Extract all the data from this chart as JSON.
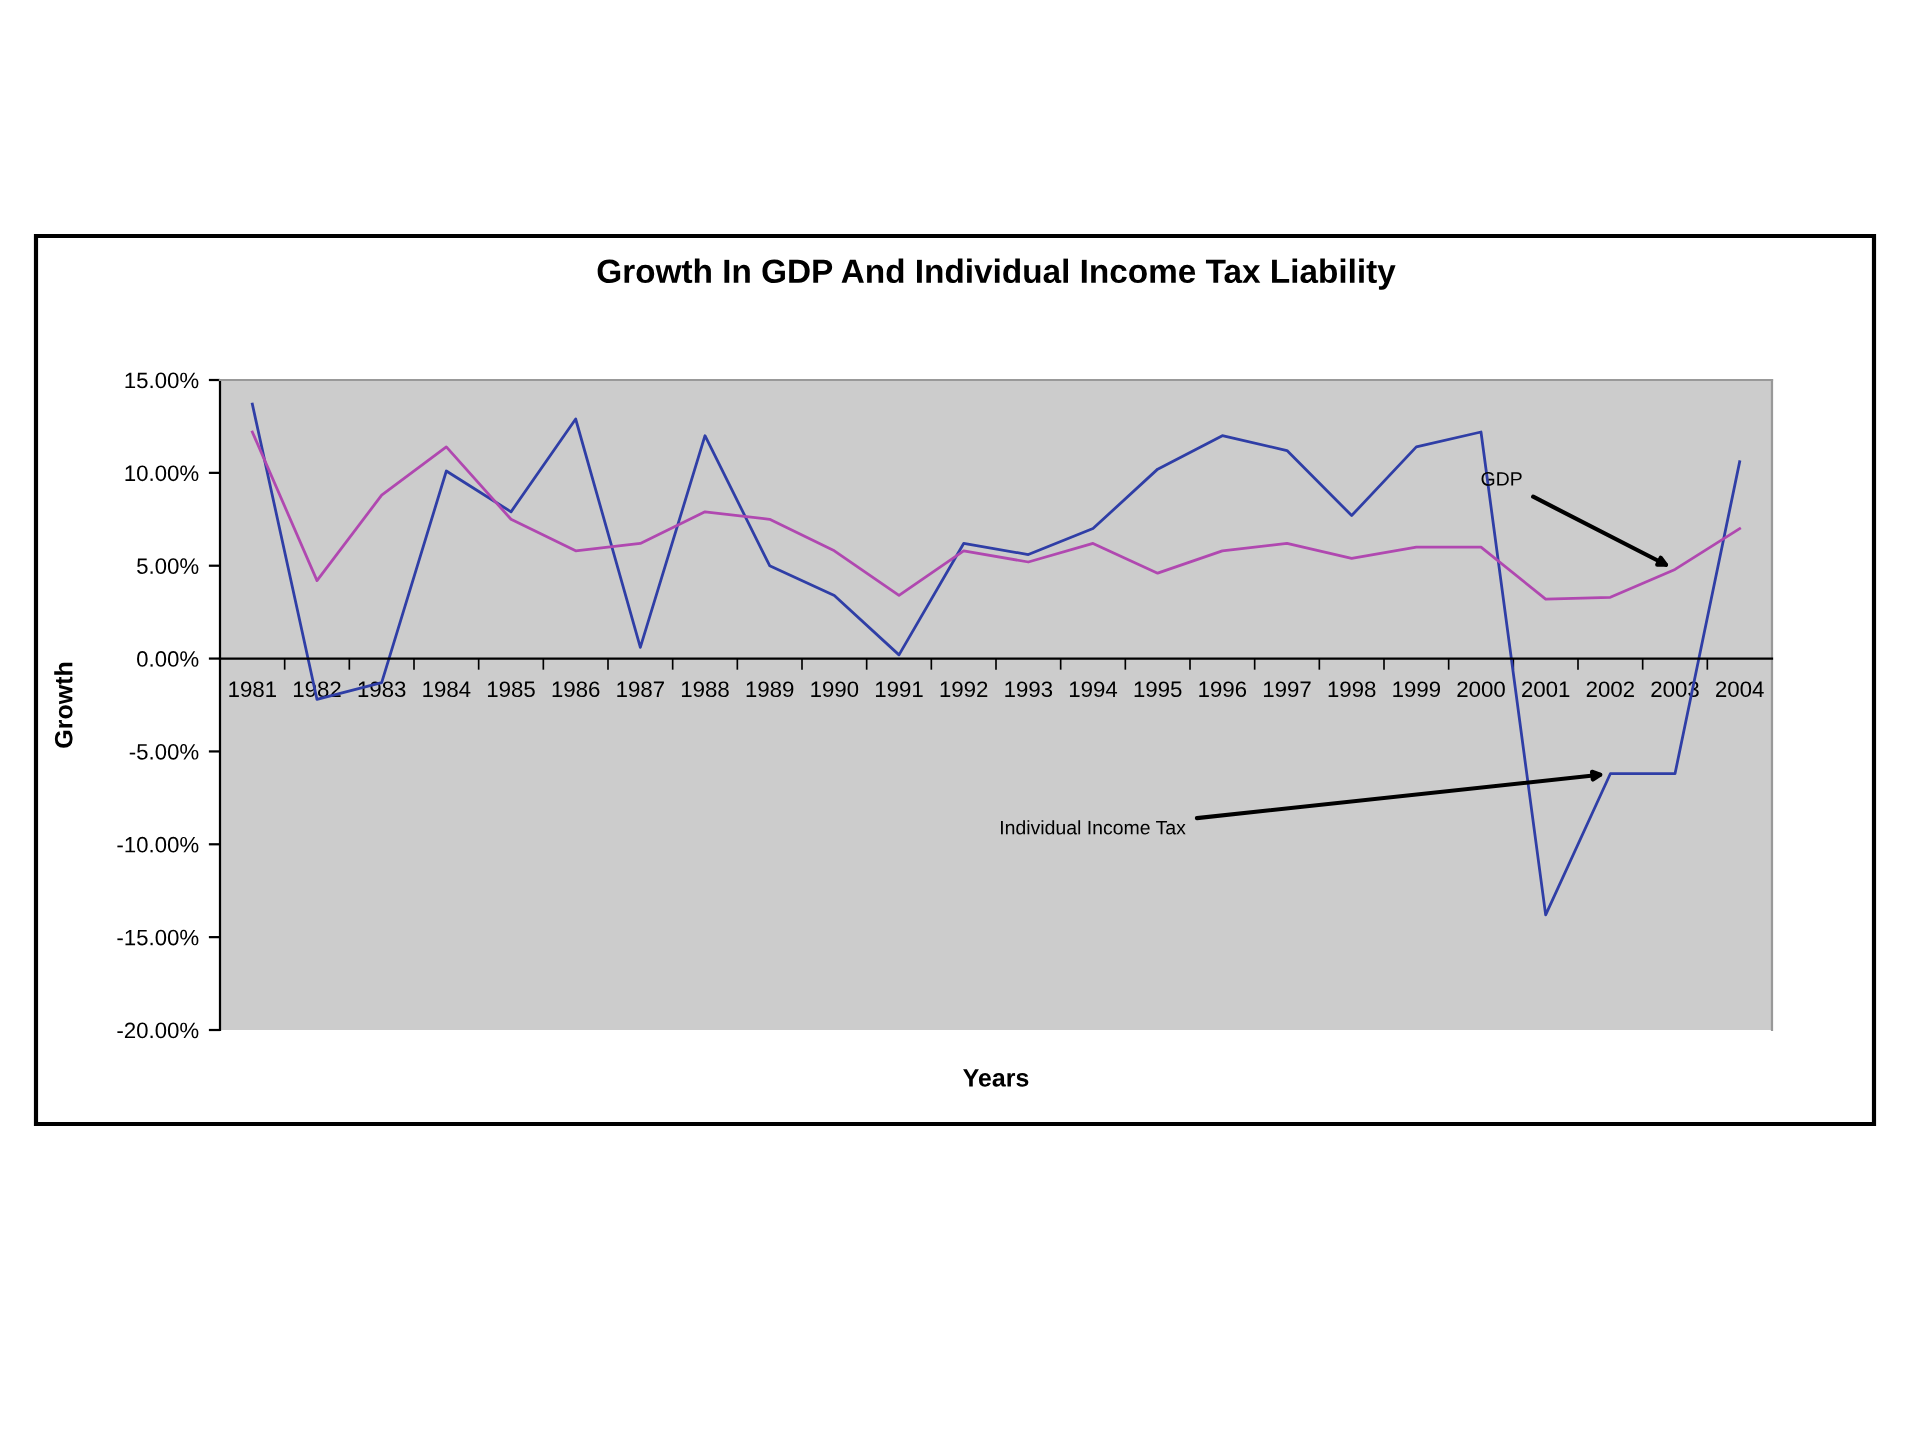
{
  "chart_data": {
    "type": "line",
    "title": "Growth In GDP And Individual Income Tax Liability",
    "xlabel": "Years",
    "ylabel": "Growth",
    "categories": [
      "1981",
      "1982",
      "1983",
      "1984",
      "1985",
      "1986",
      "1987",
      "1988",
      "1989",
      "1990",
      "1991",
      "1992",
      "1993",
      "1994",
      "1995",
      "1996",
      "1997",
      "1998",
      "1999",
      "2000",
      "2001",
      "2002",
      "2003",
      "2004"
    ],
    "series": [
      {
        "color": "#2f3ea6",
        "values": [
          13.7,
          -2.2,
          -1.3,
          10.1,
          7.9,
          12.9,
          0.6,
          12.0,
          5.0,
          3.4,
          0.2,
          6.2,
          5.6,
          7.0,
          10.2,
          12.0,
          11.2,
          7.7,
          11.4,
          12.2,
          -13.8,
          -6.2,
          -6.2,
          10.6
        ]
      },
      {
        "color": "#b048b0",
        "values": [
          12.2,
          4.2,
          8.8,
          11.4,
          7.5,
          5.8,
          6.2,
          7.9,
          7.5,
          5.8,
          3.4,
          5.8,
          5.2,
          6.2,
          4.6,
          5.8,
          6.2,
          5.4,
          6.0,
          6.0,
          3.2,
          3.3,
          4.8,
          7.0
        ]
      }
    ],
    "ylim": [
      -20,
      15
    ],
    "yticks": [
      {
        "value": -20,
        "label": "-20.00%"
      },
      {
        "value": -15,
        "label": "-15.00%"
      },
      {
        "value": -10,
        "label": "-10.00%"
      },
      {
        "value": -5,
        "label": "-5.00%"
      },
      {
        "value": 0,
        "label": "0.00%"
      },
      {
        "value": 5,
        "label": "5.00%"
      },
      {
        "value": 10,
        "label": "10.00%"
      },
      {
        "value": 15,
        "label": "15.00%"
      }
    ],
    "annotations": [
      {
        "text": "GDP",
        "x": "2003",
        "y": 4.8
      },
      {
        "text": "Individual Income Tax",
        "x": "2002",
        "y": -6.2
      }
    ],
    "grid": false,
    "legend": false,
    "marker": "none",
    "line_style": "solid"
  }
}
